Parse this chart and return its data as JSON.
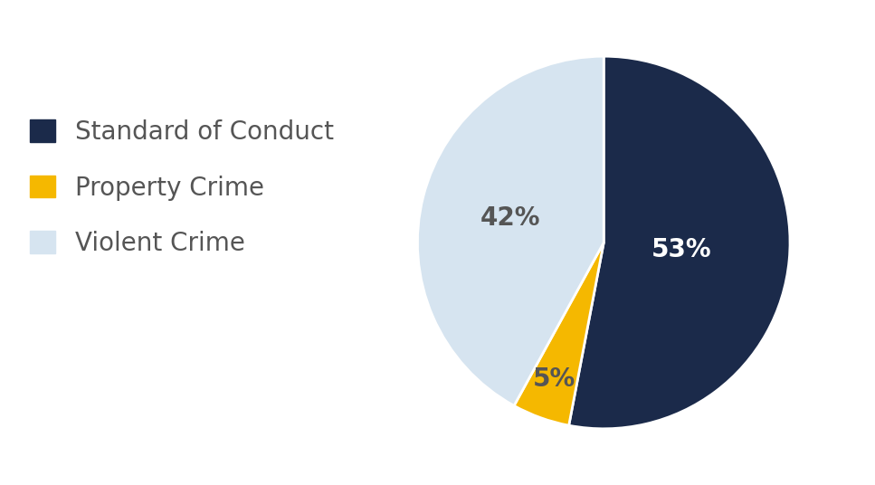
{
  "labels": [
    "Standard of Conduct",
    "Property Crime",
    "Violent Crime"
  ],
  "values": [
    53,
    5,
    42
  ],
  "colors": [
    "#1b2a4a",
    "#f5b800",
    "#d6e4f0"
  ],
  "pct_labels": [
    "53%",
    "5%",
    "42%"
  ],
  "pct_colors": [
    "#ffffff",
    "#555555",
    "#555555"
  ],
  "pct_radii": [
    0.42,
    0.78,
    0.52
  ],
  "legend_labels": [
    "Standard of Conduct",
    "Property Crime",
    "Violent Crime"
  ],
  "legend_colors": [
    "#1b2a4a",
    "#f5b800",
    "#d6e4f0"
  ],
  "label_fontsize": 20,
  "legend_fontsize": 20,
  "legend_text_color": "#555555",
  "background_color": "#ffffff",
  "startangle": 90,
  "counterclock": false
}
